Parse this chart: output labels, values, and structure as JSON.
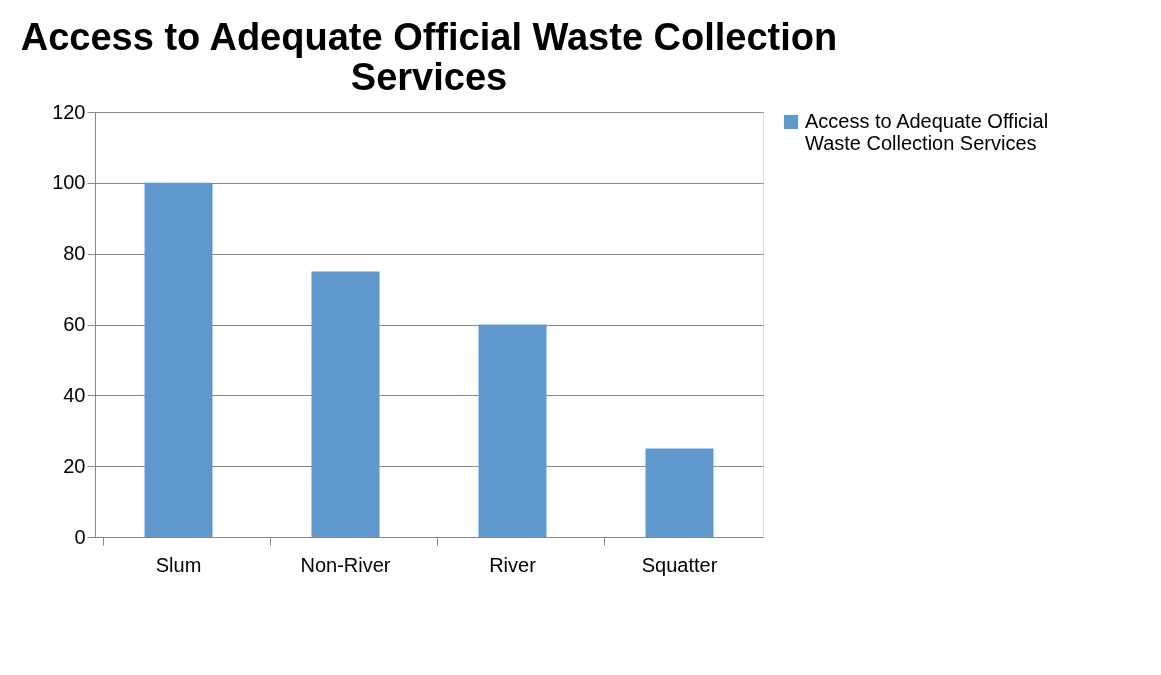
{
  "chart_data": {
    "type": "bar",
    "title": "Access to Adequate Official Waste Collection Services",
    "categories": [
      "Slum",
      "Non-River",
      "River",
      "Squatter"
    ],
    "series": [
      {
        "name": "Access to Adequate Official Waste Collection Services",
        "color": "#6097cc",
        "values": [
          100,
          75,
          60,
          25
        ]
      }
    ],
    "ylim": [
      0,
      120
    ],
    "yticks": [
      0,
      20,
      40,
      60,
      80,
      100,
      120
    ],
    "grid": "y",
    "legend": "right"
  }
}
